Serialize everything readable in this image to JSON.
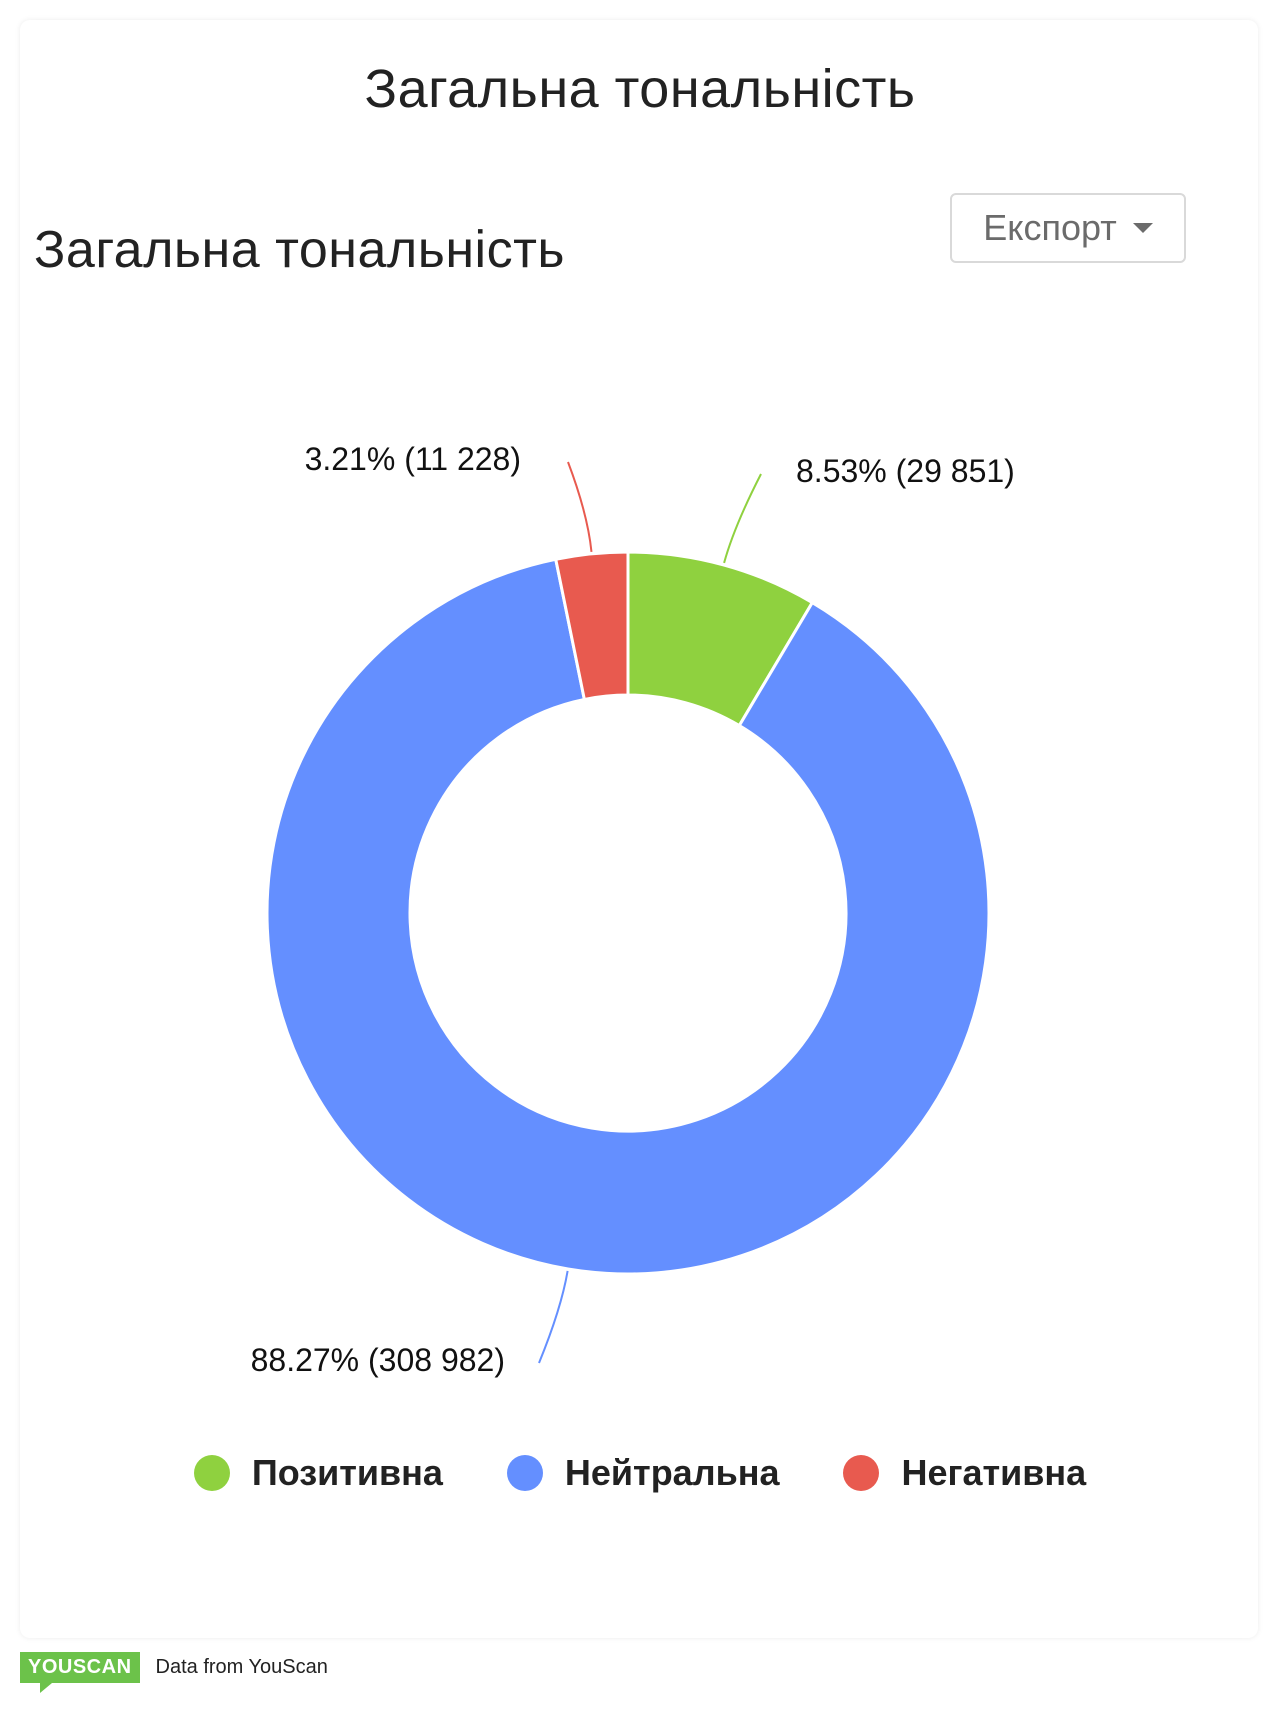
{
  "page_title": "Загальна тональність",
  "widget": {
    "title": "Загальна тональність",
    "export_label": "Експорт",
    "export_icon": "chevron-down-icon"
  },
  "chart_data": {
    "type": "donut",
    "title": "Загальна тональність",
    "series": [
      {
        "name": "Позитивна",
        "value": 29851,
        "percent": 8.53,
        "label": "8.53% (29 851)",
        "color": "#8fd13f"
      },
      {
        "name": "Нейтральна",
        "value": 308982,
        "percent": 88.27,
        "label": "88.27% (308 982)",
        "color": "#648fff"
      },
      {
        "name": "Негативна",
        "value": 11228,
        "percent": 3.21,
        "label": "3.21% (11 228)",
        "color": "#e85a4f"
      }
    ],
    "legend": "bottom-center"
  },
  "legend": [
    {
      "label": "Позитивна",
      "color": "#8fd13f"
    },
    {
      "label": "Нейтральна",
      "color": "#648fff"
    },
    {
      "label": "Негативна",
      "color": "#e85a4f"
    }
  ],
  "footer": {
    "logo_text": "YOUSCAN",
    "text": "Data from YouScan"
  }
}
